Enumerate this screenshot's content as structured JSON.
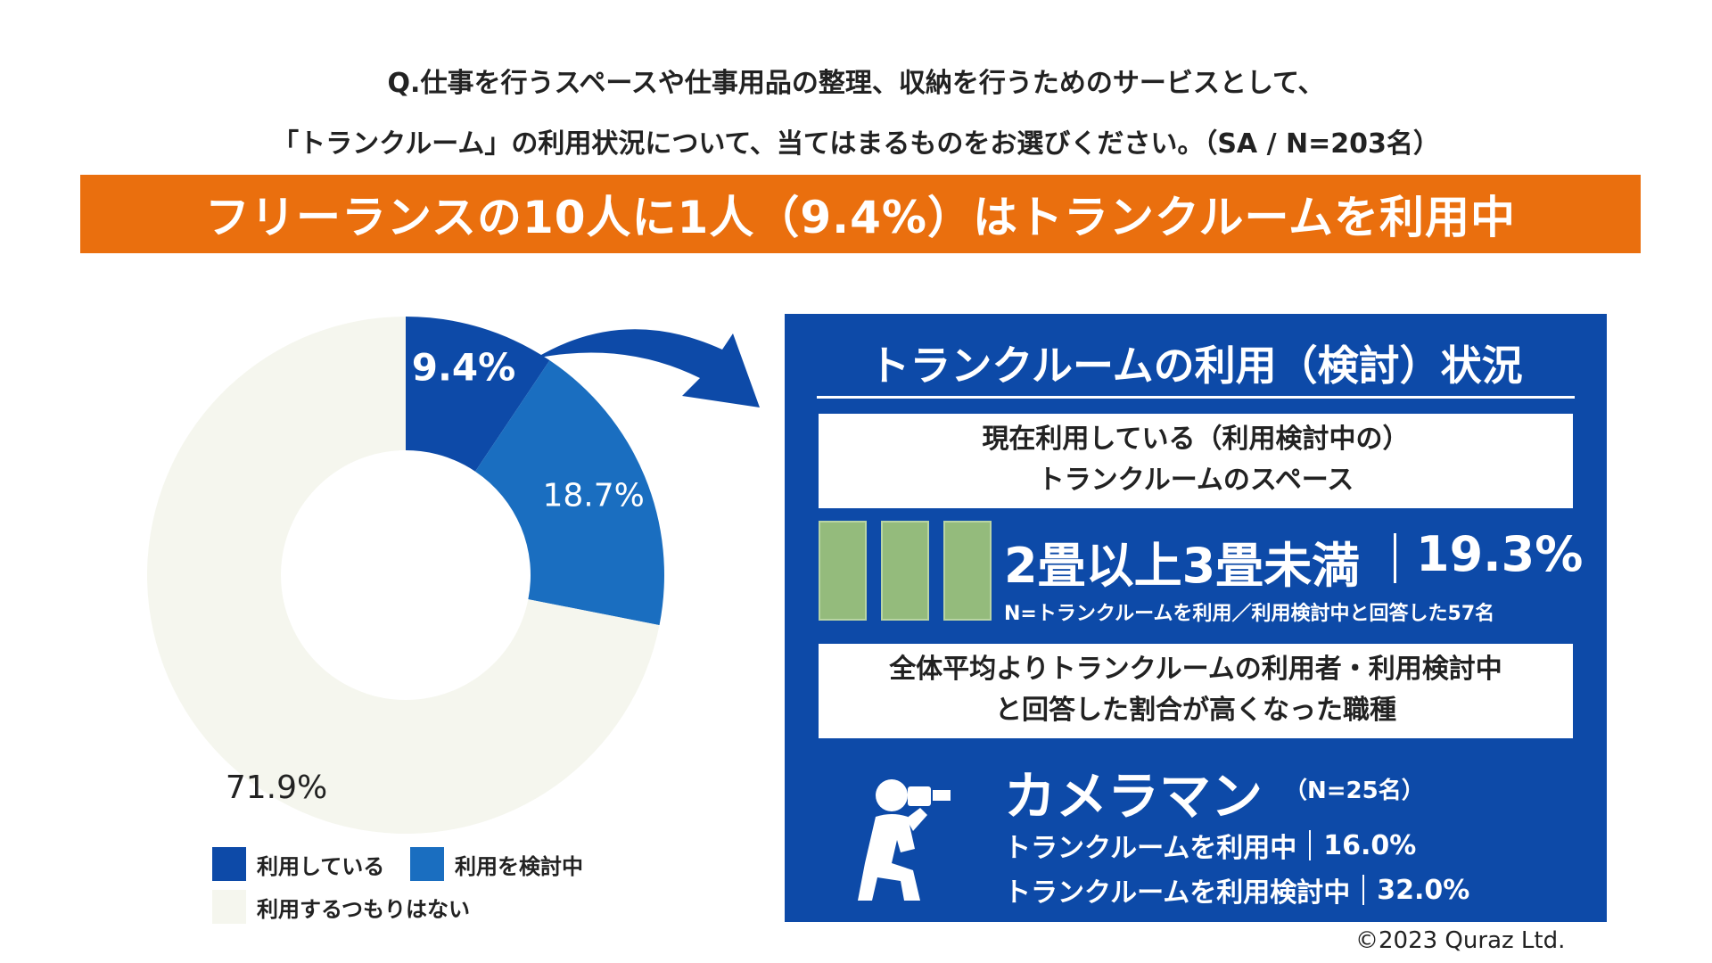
{
  "question": {
    "line1": "Q.仕事を行うスペースや仕事用品の整理、収納を行うためのサービスとして、",
    "line2": "「トランクルーム」の利用状況について、当てはまるものをお選びください。（SA / N=203名）"
  },
  "banner": "フリーランスの10人に1人（9.4%）はトランクルームを利用中",
  "chart_data": {
    "type": "pie",
    "style": "donut",
    "categories": [
      "利用している",
      "利用を検討中",
      "利用するつもりはない"
    ],
    "values": [
      9.4,
      18.7,
      71.9
    ],
    "labels": [
      "9.4%",
      "18.7%",
      "71.9%"
    ],
    "colors": [
      "#0d4aa8",
      "#1a6ec0",
      "#f5f6ee"
    ],
    "legend": "bottom"
  },
  "legend": {
    "items": [
      "利用している",
      "利用を検討中",
      "利用するつもりはない"
    ]
  },
  "panel": {
    "title": "トランクルームの利用（検討）状況",
    "box1_line1": "現在利用している（利用検討中の）",
    "box1_line2": "トランクルームのスペース",
    "size_label": "2畳以上3畳未満",
    "size_pct": "19.3%",
    "size_note": "N=トランクルームを利用／利用検討中と回答した57名",
    "box2_line1": "全体平均よりトランクルームの利用者・利用検討中",
    "box2_line2": "と回答した割合が高くなった職種",
    "job": "カメラマン",
    "job_n": "（N=25名）",
    "stat1_label": "トランクルームを利用中",
    "stat1_value": "16.0%",
    "stat2_label": "トランクルームを利用検討中",
    "stat2_value": "32.0%"
  },
  "copyright": "©2023 Quraz Ltd.",
  "colors": {
    "orange": "#ea6f0e",
    "blue": "#0d4aa8",
    "mid_blue": "#1a6ec0",
    "cream": "#f5f6ee",
    "tatami": "#94bb7c"
  }
}
